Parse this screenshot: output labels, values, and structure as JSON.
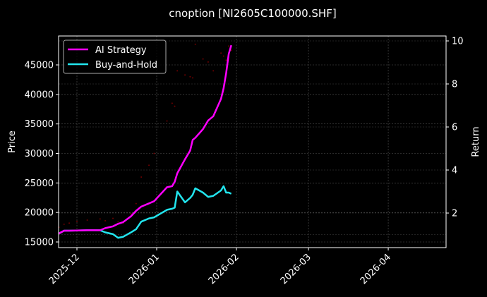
{
  "chart_data": {
    "type": "line",
    "title": "cnoption [NI2605C100000.SHF]",
    "xlabel": "",
    "ylabel": "Price",
    "ylabel_right": "Return",
    "x_ticks": [
      "2025-12",
      "2026-01",
      "2026-02",
      "2026-03",
      "2026-04"
    ],
    "y_ticks_left": [
      15000,
      20000,
      25000,
      30000,
      35000,
      40000,
      45000
    ],
    "y_ticks_right": [
      2,
      4,
      6,
      8,
      10
    ],
    "ylim_left": [
      14000,
      49000
    ],
    "ylim_right": [
      0.5,
      10.2
    ],
    "xlim": [
      "2025-11-24",
      "2026-05-01"
    ],
    "grid": true,
    "legend_position": "upper left",
    "background": "#000000",
    "x": [
      "2025-11-24",
      "2025-11-26",
      "2025-11-28",
      "2025-12-01",
      "2025-12-05",
      "2025-12-10",
      "2025-12-12",
      "2025-12-15",
      "2025-12-17",
      "2025-12-19",
      "2025-12-22",
      "2025-12-24",
      "2025-12-26",
      "2025-12-29",
      "2025-12-31",
      "2026-01-05",
      "2026-01-07",
      "2026-01-08",
      "2026-01-09",
      "2026-01-12",
      "2026-01-14",
      "2026-01-15",
      "2026-01-16",
      "2026-01-19",
      "2026-01-21",
      "2026-01-23",
      "2026-01-26",
      "2026-01-27",
      "2026-01-28",
      "2026-01-29",
      "2026-01-30"
    ],
    "series": [
      {
        "name": "AI Strategy",
        "color": "#ff00ff",
        "axis": "right",
        "values": [
          1.05,
          1.18,
          1.18,
          1.19,
          1.2,
          1.2,
          1.3,
          1.38,
          1.5,
          1.58,
          1.85,
          2.1,
          2.3,
          2.45,
          2.55,
          3.2,
          3.25,
          3.45,
          3.85,
          4.5,
          4.9,
          5.4,
          5.5,
          5.9,
          6.3,
          6.5,
          7.3,
          7.8,
          8.5,
          9.4,
          9.8
        ]
      },
      {
        "name": "Buy-and-Hold",
        "color": "#22e5ee",
        "axis": "right",
        "values": [
          1.05,
          1.18,
          1.18,
          1.19,
          1.2,
          1.2,
          1.1,
          1.02,
          0.85,
          0.9,
          1.1,
          1.25,
          1.6,
          1.75,
          1.8,
          2.15,
          2.2,
          2.25,
          3.0,
          2.5,
          2.7,
          2.85,
          3.15,
          2.95,
          2.75,
          2.8,
          3.05,
          3.25,
          2.95,
          2.95,
          2.9
        ]
      },
      {
        "name": "Price",
        "color": "#8b0000",
        "axis": "left",
        "style": "faint scatter",
        "values": [
          17500,
          18000,
          18200,
          18500,
          18700,
          18900,
          18600,
          19000,
          18400,
          18200,
          19800,
          21500,
          26000,
          28000,
          30000,
          35500,
          38500,
          38000,
          44000,
          43300,
          43000,
          42800,
          48500,
          46000,
          45500,
          44000,
          47000,
          46500,
          45800,
          48200,
          47500
        ]
      }
    ]
  },
  "header": {
    "title": "cnoption [NI2605C100000.SHF]"
  },
  "axes": {
    "left_label": "Price",
    "right_label": "Return",
    "left_ticks": [
      "15000",
      "20000",
      "25000",
      "30000",
      "35000",
      "40000",
      "45000"
    ],
    "right_ticks": [
      "2",
      "4",
      "6",
      "8",
      "10"
    ],
    "x_ticks": [
      "2025-12",
      "2026-01",
      "2026-02",
      "2026-03",
      "2026-04"
    ]
  },
  "legend": {
    "items": [
      {
        "label": "AI Strategy",
        "color": "#ff00ff"
      },
      {
        "label": "Buy-and-Hold",
        "color": "#22e5ee"
      }
    ]
  }
}
